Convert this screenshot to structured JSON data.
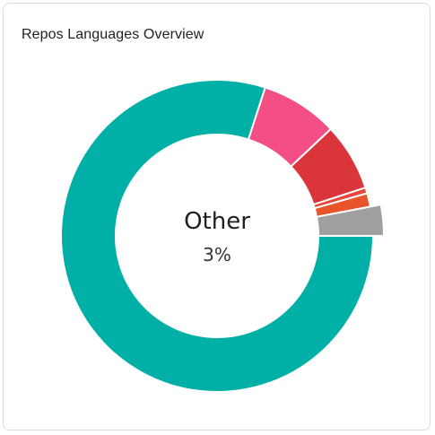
{
  "card": {
    "title": "Repos Languages Overview"
  },
  "chart_data": {
    "type": "pie",
    "style": "donut",
    "active_slice": "Other",
    "center": {
      "label": "Other",
      "value": "3%"
    },
    "slices": [
      {
        "value": 80,
        "color": "#00b0a6"
      },
      {
        "value": 8,
        "color": "#f44f84"
      },
      {
        "value": 7,
        "color": "#d9353a"
      },
      {
        "value": 0.6,
        "color": "#e8443a"
      },
      {
        "value": 1.4,
        "color": "#e8552a"
      },
      {
        "value": 3,
        "label": "Other",
        "color": "#a0a0a0"
      }
    ]
  }
}
